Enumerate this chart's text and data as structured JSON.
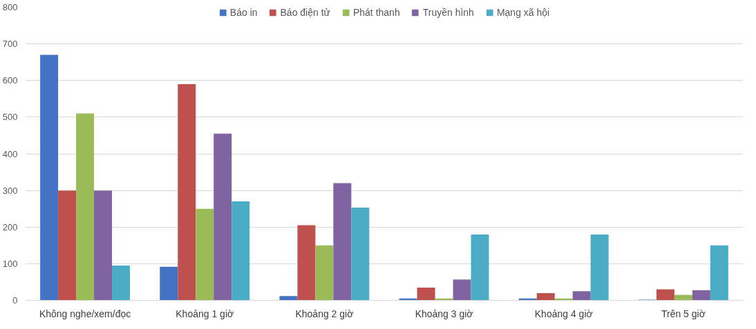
{
  "chart_data": {
    "type": "bar",
    "categories": [
      "Không nghe/xem/đọc",
      "Khoảng 1 giờ",
      "Khoảng 2 giờ",
      "Khoảng 3 giờ",
      "Khoảng 4 giờ",
      "Trên 5 giờ"
    ],
    "series": [
      {
        "name": "Báo in",
        "color": "#4472c4",
        "values": [
          670,
          92,
          12,
          5,
          5,
          2
        ]
      },
      {
        "name": "Báo điện tử",
        "color": "#c0504d",
        "values": [
          300,
          590,
          205,
          35,
          20,
          30
        ]
      },
      {
        "name": "Phát thanh",
        "color": "#9bbb59",
        "values": [
          510,
          250,
          150,
          5,
          5,
          15
        ]
      },
      {
        "name": "Truyền hình",
        "color": "#8064a2",
        "values": [
          300,
          455,
          320,
          57,
          25,
          28
        ]
      },
      {
        "name": "Mạng xã hội",
        "color": "#4bacc6",
        "values": [
          95,
          270,
          253,
          180,
          180,
          150
        ]
      }
    ],
    "ylim": [
      0,
      800
    ],
    "yticks": [
      0,
      100,
      200,
      300,
      400,
      500,
      600,
      700,
      800
    ],
    "grid": "y",
    "legend": "top"
  }
}
